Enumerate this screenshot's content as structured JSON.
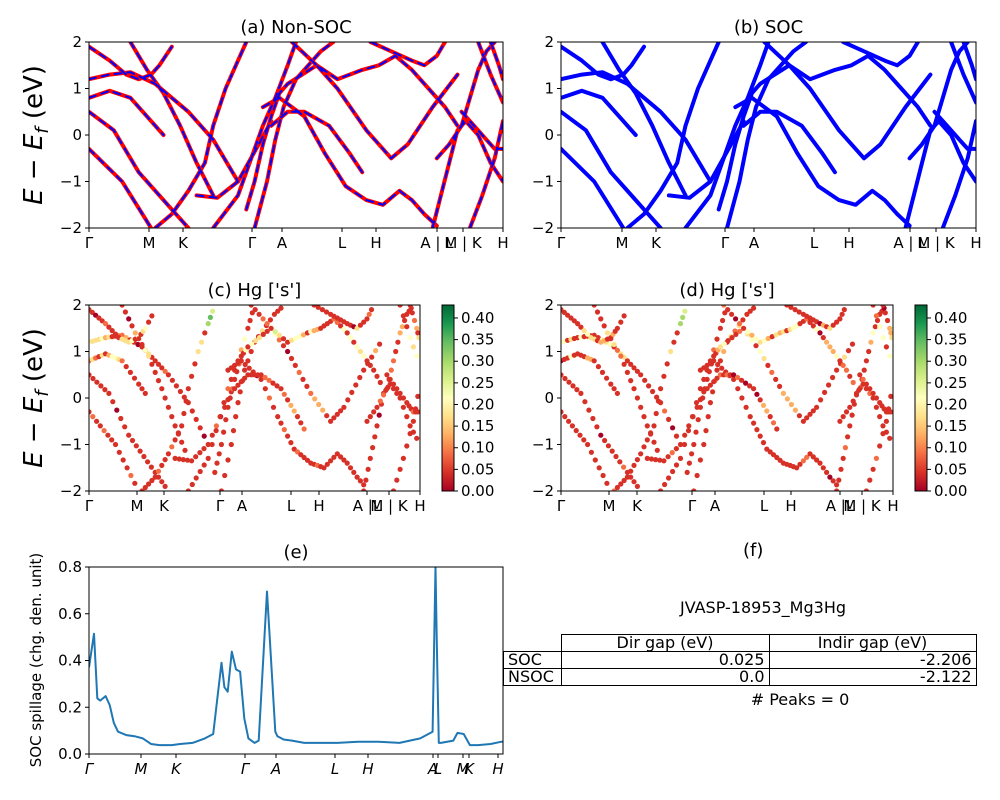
{
  "chart_data": [
    {
      "id": "a",
      "type": "line",
      "title": "(a) Non-SOC",
      "ylabel": "E − E_f (eV)",
      "ylim": [
        -2,
        2
      ],
      "yticks": [
        "2",
        "1",
        "0",
        "−1",
        "−2"
      ],
      "xticks": [
        "Γ",
        "M",
        "K",
        "Γ",
        "A",
        "L",
        "H",
        "A | L",
        "M | K",
        "H"
      ],
      "series": [
        {
          "color": "#ff0000",
          "style": "solid",
          "bands": [
            [
              [
                0,
                -0.3
              ],
              [
                0.08,
                -1.0
              ],
              [
                0.15,
                -2.0
              ]
            ],
            [
              [
                0,
                0.5
              ],
              [
                0.06,
                0.1
              ],
              [
                0.12,
                -0.8
              ],
              [
                0.2,
                -1.6
              ],
              [
                0.24,
                -2.0
              ]
            ],
            [
              [
                0,
                0.8
              ],
              [
                0.05,
                0.95
              ],
              [
                0.1,
                0.8
              ],
              [
                0.15,
                0.3
              ],
              [
                0.18,
                0.0
              ]
            ],
            [
              [
                0,
                1.2
              ],
              [
                0.05,
                1.3
              ],
              [
                0.1,
                1.35
              ],
              [
                0.16,
                1.1
              ],
              [
                0.2,
                0.8
              ],
              [
                0.24,
                0.5
              ],
              [
                0.3,
                -0.1
              ],
              [
                0.36,
                -1.0
              ]
            ],
            [
              [
                0,
                1.9
              ],
              [
                0.05,
                1.6
              ],
              [
                0.09,
                1.3
              ],
              [
                0.12,
                1.2
              ],
              [
                0.15,
                1.3
              ],
              [
                0.17,
                1.5
              ],
              [
                0.2,
                1.9
              ]
            ],
            [
              [
                0.1,
                2.0
              ],
              [
                0.14,
                1.4
              ],
              [
                0.18,
                0.9
              ],
              [
                0.22,
                0.2
              ],
              [
                0.26,
                -0.6
              ],
              [
                0.3,
                -1.3
              ]
            ],
            [
              [
                0.26,
                -1.3
              ],
              [
                0.31,
                -1.35
              ],
              [
                0.36,
                -1.0
              ],
              [
                0.41,
                -0.2
              ],
              [
                0.44,
                0.3
              ]
            ],
            [
              [
                0.16,
                -2.0
              ],
              [
                0.2,
                -1.7
              ],
              [
                0.24,
                -1.2
              ],
              [
                0.28,
                -0.6
              ],
              [
                0.3,
                0.2
              ],
              [
                0.33,
                1.0
              ],
              [
                0.36,
                1.6
              ],
              [
                0.38,
                2.0
              ]
            ],
            [
              [
                0.3,
                -2.0
              ],
              [
                0.36,
                -1.3
              ],
              [
                0.42,
                0.2
              ],
              [
                0.45,
                0.8
              ],
              [
                0.48,
                1.5
              ],
              [
                0.5,
                2.0
              ]
            ],
            [
              [
                0.4,
                -2.0
              ],
              [
                0.43,
                -1.0
              ],
              [
                0.45,
                -0.1
              ],
              [
                0.47,
                0.6
              ],
              [
                0.5,
                1.2
              ],
              [
                0.56,
                1.8
              ],
              [
                0.59,
                2.0
              ]
            ],
            [
              [
                0.38,
                -1.6
              ],
              [
                0.4,
                -1.0
              ],
              [
                0.42,
                -0.2
              ],
              [
                0.44,
                0.4
              ],
              [
                0.46,
                0.9
              ],
              [
                0.48,
                1.1
              ],
              [
                0.55,
                1.5
              ],
              [
                0.6,
                1.0
              ],
              [
                0.67,
                0.1
              ],
              [
                0.73,
                -0.5
              ],
              [
                0.77,
                -0.2
              ],
              [
                0.83,
                0.6
              ],
              [
                0.89,
                1.3
              ]
            ],
            [
              [
                0.42,
                0.6
              ],
              [
                0.46,
                0.8
              ],
              [
                0.52,
                0.4
              ],
              [
                0.57,
                -0.4
              ],
              [
                0.62,
                -1.1
              ],
              [
                0.67,
                -1.4
              ],
              [
                0.71,
                -1.5
              ],
              [
                0.75,
                -1.2
              ],
              [
                0.78,
                -1.4
              ],
              [
                0.81,
                -1.7
              ],
              [
                0.84,
                -1.95
              ]
            ],
            [
              [
                0.44,
                0.2
              ],
              [
                0.48,
                0.5
              ],
              [
                0.52,
                0.5
              ],
              [
                0.58,
                0.2
              ],
              [
                0.63,
                -0.4
              ],
              [
                0.66,
                -0.8
              ]
            ],
            [
              [
                0.49,
                2.0
              ],
              [
                0.55,
                1.5
              ],
              [
                0.6,
                1.2
              ],
              [
                0.66,
                1.4
              ],
              [
                0.7,
                1.5
              ],
              [
                0.74,
                1.7
              ],
              [
                0.78,
                1.4
              ],
              [
                0.82,
                1.0
              ],
              [
                0.86,
                0.6
              ],
              [
                0.89,
                0.2
              ]
            ],
            [
              [
                0.68,
                2.0
              ],
              [
                0.73,
                1.8
              ],
              [
                0.78,
                1.6
              ],
              [
                0.81,
                1.5
              ],
              [
                0.84,
                1.7
              ],
              [
                0.86,
                2.0
              ]
            ],
            [
              [
                0.83,
                -2.0
              ],
              [
                0.85,
                -1.3
              ],
              [
                0.87,
                -0.6
              ],
              [
                0.89,
                0.1
              ],
              [
                0.91,
                0.3
              ],
              [
                0.94,
                0.0
              ],
              [
                0.97,
                -0.6
              ],
              [
                1.0,
                -1.0
              ]
            ],
            [
              [
                0.84,
                -0.5
              ],
              [
                0.87,
                -0.2
              ],
              [
                0.9,
                0.2
              ],
              [
                0.92,
                0.8
              ],
              [
                0.94,
                1.4
              ],
              [
                0.96,
                1.8
              ],
              [
                0.98,
                2.0
              ]
            ],
            [
              [
                0.9,
                0.5
              ],
              [
                0.93,
                0.2
              ],
              [
                0.96,
                -0.1
              ],
              [
                0.98,
                -0.3
              ],
              [
                1.0,
                -0.3
              ]
            ],
            [
              [
                0.92,
                -2.0
              ],
              [
                0.95,
                -1.3
              ],
              [
                0.98,
                -0.5
              ],
              [
                1.0,
                0.3
              ]
            ],
            [
              [
                0.94,
                2.0
              ],
              [
                0.97,
                1.3
              ],
              [
                1.0,
                0.7
              ]
            ],
            [
              [
                0.97,
                2.0
              ],
              [
                0.99,
                1.5
              ],
              [
                1.0,
                1.2
              ]
            ]
          ]
        },
        {
          "color": "#0000ff",
          "style": "dashed",
          "bands": "same"
        }
      ]
    },
    {
      "id": "b",
      "type": "line",
      "title": "(b) SOC",
      "ylim": [
        -2,
        2
      ],
      "yticks": [
        "2",
        "1",
        "0",
        "−1",
        "−2"
      ],
      "xticks": [
        "Γ",
        "M",
        "K",
        "Γ",
        "A",
        "L",
        "H",
        "A | L",
        "M | K",
        "H"
      ],
      "series": [
        {
          "color": "#0000ff",
          "style": "solid",
          "bands": "same"
        }
      ]
    },
    {
      "id": "c",
      "type": "scatter",
      "title": "(c)  Hg ['s']",
      "ylabel": "E − E_f (eV)",
      "ylim": [
        -2,
        2
      ],
      "yticks": [
        "2",
        "1",
        "0",
        "−1",
        "−2"
      ],
      "xticks": [
        "Γ",
        "M",
        "K",
        "Γ",
        "A",
        "L",
        "H",
        "A |L",
        "M | K",
        "H"
      ],
      "points_source": "bands of (a), sampled",
      "colormap": "RdYlGn",
      "colorbar_ticks": [
        "0.40",
        "0.35",
        "0.30",
        "0.25",
        "0.20",
        "0.15",
        "0.10",
        "0.05",
        "0.00"
      ],
      "colorbar_range": [
        0,
        0.43
      ]
    },
    {
      "id": "d",
      "type": "scatter",
      "title": "(d) Hg ['s']",
      "ylim": [
        -2,
        2
      ],
      "yticks": [
        "2",
        "1",
        "0",
        "−1",
        "−2"
      ],
      "xticks": [
        "Γ",
        "M",
        "K",
        "Γ",
        "A",
        "L",
        "H",
        "A |L",
        "M | K",
        "H"
      ],
      "points_source": "bands of (b), sampled",
      "colormap": "RdYlGn",
      "colorbar_ticks": [
        "0.40",
        "0.35",
        "0.30",
        "0.25",
        "0.20",
        "0.15",
        "0.10",
        "0.05",
        "0.00"
      ],
      "colorbar_range": [
        0,
        0.43
      ]
    },
    {
      "id": "e",
      "type": "line",
      "title": "(e)",
      "ylabel": "SOC spillage (chg. den. unit)",
      "ylim": [
        0,
        0.84
      ],
      "yticks": [
        "0.8",
        "0.6",
        "0.4",
        "0.2",
        "0.0"
      ],
      "xticks": [
        "Γ",
        "M",
        "K",
        "Γ",
        "A",
        "L",
        "H",
        "A",
        "L",
        "M",
        "K",
        "H"
      ],
      "color": "#1f77b4",
      "x": [
        0,
        0.012,
        0.02,
        0.027,
        0.04,
        0.05,
        0.06,
        0.07,
        0.09,
        0.11,
        0.13,
        0.15,
        0.17,
        0.19,
        0.2,
        0.22,
        0.25,
        0.28,
        0.3,
        0.32,
        0.327,
        0.335,
        0.345,
        0.355,
        0.365,
        0.375,
        0.385,
        0.4,
        0.41,
        0.43,
        0.45,
        0.455,
        0.46,
        0.47,
        0.49,
        0.52,
        0.55,
        0.6,
        0.65,
        0.7,
        0.75,
        0.8,
        0.83,
        0.837,
        0.84,
        0.845,
        0.85,
        0.88,
        0.89,
        0.905,
        0.92,
        0.94,
        0.97,
        0.995,
        1.0
      ],
      "y": [
        0.39,
        0.54,
        0.25,
        0.24,
        0.26,
        0.22,
        0.14,
        0.1,
        0.085,
        0.08,
        0.07,
        0.045,
        0.04,
        0.04,
        0.04,
        0.045,
        0.05,
        0.07,
        0.09,
        0.41,
        0.3,
        0.28,
        0.46,
        0.38,
        0.37,
        0.16,
        0.07,
        0.05,
        0.06,
        0.73,
        0.1,
        0.08,
        0.075,
        0.065,
        0.06,
        0.05,
        0.05,
        0.05,
        0.055,
        0.055,
        0.05,
        0.07,
        0.1,
        0.84,
        0.5,
        0.05,
        0.05,
        0.06,
        0.095,
        0.09,
        0.04,
        0.04,
        0.045,
        0.055,
        0.055
      ]
    }
  ],
  "summary": {
    "panel_title": "(f)",
    "material": "JVASP-18953_Mg3Hg",
    "table": {
      "headers": [
        "Dir gap (eV)",
        "Indir gap (eV)"
      ],
      "rows": [
        {
          "label": "SOC",
          "dir": "0.025",
          "indir": "-2.206"
        },
        {
          "label": "NSOC",
          "dir": "0.0",
          "indir": "-2.122"
        }
      ]
    },
    "peaks": "# Peaks = 0"
  }
}
